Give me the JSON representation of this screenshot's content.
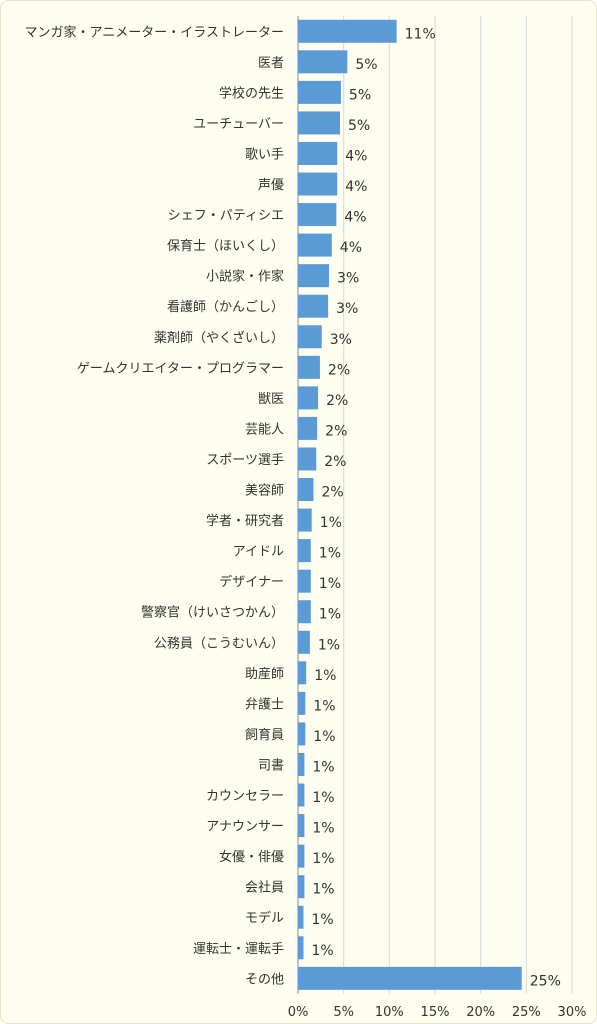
{
  "chart_data": {
    "type": "bar",
    "orientation": "horizontal",
    "categories": [
      "マンガ家・アニメーター・イラストレーター",
      "医者",
      "学校の先生",
      "ユーチューバー",
      "歌い手",
      "声優",
      "シェフ・パティシエ",
      "保育士（ほいくし）",
      "小説家・作家",
      "看護師（かんごし）",
      "薬剤師（やくざいし）",
      "ゲームクリエイター・プログラマー",
      "獣医",
      "芸能人",
      "スポーツ選手",
      "美容師",
      "学者・研究者",
      "アイドル",
      "デザイナー",
      "警察官（けいさつかん）",
      "公務員（こうむいん）",
      "助産師",
      "弁護士",
      "飼育員",
      "司書",
      "カウンセラー",
      "アナウンサー",
      "女優・俳優",
      "会社員",
      "モデル",
      "運転士・運転手",
      "その他"
    ],
    "values": [
      10.8,
      5.4,
      4.7,
      4.6,
      4.3,
      4.3,
      4.2,
      3.7,
      3.4,
      3.3,
      2.6,
      2.4,
      2.2,
      2.1,
      2.0,
      1.7,
      1.5,
      1.4,
      1.4,
      1.4,
      1.3,
      0.9,
      0.8,
      0.8,
      0.7,
      0.7,
      0.7,
      0.7,
      0.7,
      0.6,
      0.6,
      24.5
    ],
    "value_labels": [
      "11%",
      "5%",
      "5%",
      "5%",
      "4%",
      "4%",
      "4%",
      "4%",
      "3%",
      "3%",
      "3%",
      "2%",
      "2%",
      "2%",
      "2%",
      "2%",
      "1%",
      "1%",
      "1%",
      "1%",
      "1%",
      "1%",
      "1%",
      "1%",
      "1%",
      "1%",
      "1%",
      "1%",
      "1%",
      "1%",
      "1%",
      "25%"
    ],
    "xlim": [
      0,
      30
    ],
    "x_ticks": [
      "0%",
      "5%",
      "10%",
      "15%",
      "20%",
      "25%",
      "30%"
    ],
    "grid": true,
    "colors": {
      "bar": "#5b9bd5",
      "background": "#fdfdf0"
    }
  }
}
